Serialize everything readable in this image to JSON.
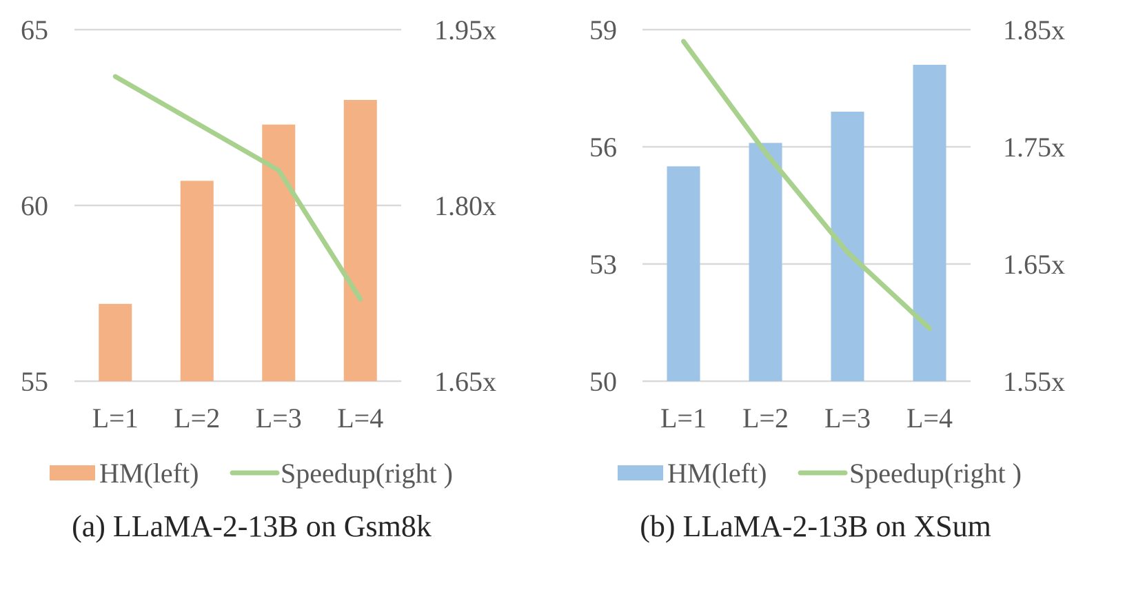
{
  "chart_data": [
    {
      "type": "bar+line",
      "caption": "(a) LLaMA-2-13B on Gsm8k",
      "categories": [
        "L=1",
        "L=2",
        "L=3",
        "L=4"
      ],
      "bar_series": {
        "name": "HM(left)",
        "values": [
          57.2,
          60.7,
          62.3,
          63.0
        ],
        "color": "#F4B183"
      },
      "line_series": {
        "name": "Speedup(right )",
        "values": [
          1.91,
          1.87,
          1.83,
          1.72
        ],
        "color": "#A9D18E"
      },
      "left_axis": {
        "ylim": [
          55,
          65
        ],
        "ticks": [
          55,
          60,
          65
        ],
        "tick_labels": [
          "55",
          "60",
          "65"
        ]
      },
      "right_axis": {
        "ylim": [
          1.65,
          1.95
        ],
        "ticks": [
          1.65,
          1.8,
          1.95
        ],
        "tick_labels": [
          "1.65x",
          "1.80x",
          "1.95x"
        ]
      },
      "grid": true,
      "legend": "bottom"
    },
    {
      "type": "bar+line",
      "caption": "(b) LLaMA-2-13B on XSum",
      "categories": [
        "L=1",
        "L=2",
        "L=3",
        "L=4"
      ],
      "bar_series": {
        "name": "HM(left)",
        "values": [
          55.5,
          56.1,
          56.9,
          58.1
        ],
        "color": "#9DC3E6"
      },
      "line_series": {
        "name": "Speedup(right )",
        "values": [
          1.84,
          1.745,
          1.66,
          1.595
        ],
        "color": "#A9D18E"
      },
      "left_axis": {
        "ylim": [
          50,
          59
        ],
        "ticks": [
          50,
          53,
          56,
          59
        ],
        "tick_labels": [
          "50",
          "53",
          "56",
          "59"
        ]
      },
      "right_axis": {
        "ylim": [
          1.55,
          1.85
        ],
        "ticks": [
          1.55,
          1.65,
          1.75,
          1.85
        ],
        "tick_labels": [
          "1.55x",
          "1.65x",
          "1.75x",
          "1.85x"
        ]
      },
      "grid": true,
      "legend": "bottom"
    }
  ]
}
